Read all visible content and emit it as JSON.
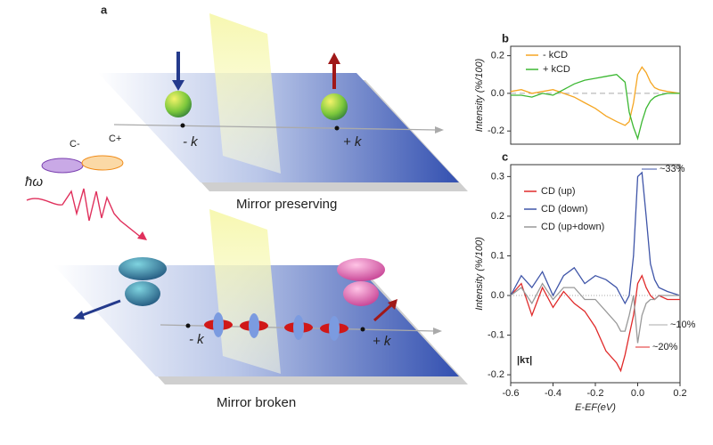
{
  "diagram": {
    "panel_label": "a",
    "top": {
      "minus_k": "- k",
      "plus_k": "+ k",
      "caption": "Mirror preserving"
    },
    "light": {
      "c_minus": "C-",
      "c_plus": "C+",
      "photon": "ħω"
    },
    "bottom": {
      "minus_k": "- k",
      "plus_k": "+ k",
      "caption": "Mirror broken"
    }
  },
  "chart_data": [
    {
      "type": "line",
      "panel_label": "b",
      "ylabel": "Intensity (%/100)",
      "x": [
        -0.6,
        -0.55,
        -0.5,
        -0.45,
        -0.4,
        -0.35,
        -0.3,
        -0.25,
        -0.2,
        -0.15,
        -0.1,
        -0.08,
        -0.06,
        -0.04,
        -0.02,
        0,
        0.02,
        0.04,
        0.06,
        0.08,
        0.1,
        0.14,
        0.2
      ],
      "xlim": [
        -0.6,
        0.2
      ],
      "ylim": [
        -0.27,
        0.25
      ],
      "yticks": [
        -0.2,
        {
          "value": 0,
          "label": "0.0"
        },
        0.2
      ],
      "zero_line": "dashed",
      "series": [
        {
          "name": "- kCD",
          "color": "#f5a623",
          "values": [
            0.01,
            0.02,
            0.0,
            0.01,
            0.02,
            0.0,
            -0.02,
            -0.05,
            -0.08,
            -0.12,
            -0.15,
            -0.16,
            -0.17,
            -0.15,
            -0.05,
            0.1,
            0.14,
            0.11,
            0.06,
            0.03,
            0.02,
            0.01,
            0.0
          ]
        },
        {
          "name": "+ kCD",
          "color": "#3cb832",
          "values": [
            -0.01,
            -0.01,
            -0.02,
            0.0,
            -0.01,
            0.02,
            0.05,
            0.07,
            0.08,
            0.09,
            0.1,
            0.08,
            0.06,
            -0.1,
            -0.18,
            -0.24,
            -0.15,
            -0.08,
            -0.04,
            -0.02,
            -0.01,
            0.0,
            0.0
          ]
        }
      ]
    },
    {
      "type": "line",
      "panel_label": "c",
      "ylabel": "Intensity (%/100)",
      "xlabel": "E-EF(eV)",
      "x": [
        -0.6,
        -0.55,
        -0.5,
        -0.45,
        -0.4,
        -0.35,
        -0.3,
        -0.25,
        -0.2,
        -0.15,
        -0.1,
        -0.08,
        -0.06,
        -0.04,
        -0.02,
        0,
        0.02,
        0.04,
        0.06,
        0.08,
        0.1,
        0.14,
        0.2
      ],
      "xlim": [
        -0.6,
        0.2
      ],
      "xticks": [
        -0.6,
        -0.4,
        -0.2,
        {
          "value": 0,
          "label": "0.0"
        },
        0.2
      ],
      "ylim": [
        -0.22,
        0.33
      ],
      "yticks": [
        -0.2,
        -0.1,
        {
          "value": 0,
          "label": "0.0"
        },
        0.1,
        0.2,
        0.3
      ],
      "zero_line": "dotted",
      "series": [
        {
          "name": "CD (up)",
          "color": "#e02a2a",
          "values": [
            0.0,
            0.03,
            -0.05,
            0.02,
            -0.03,
            0.01,
            -0.02,
            -0.04,
            -0.08,
            -0.14,
            -0.17,
            -0.19,
            -0.15,
            -0.1,
            -0.05,
            0.03,
            0.05,
            0.02,
            0.0,
            -0.01,
            0.0,
            -0.01,
            -0.01
          ]
        },
        {
          "name": "CD (down)",
          "color": "#3f55a8",
          "values": [
            0.0,
            0.05,
            0.02,
            0.06,
            0.0,
            0.05,
            0.07,
            0.03,
            0.05,
            0.04,
            0.02,
            0.0,
            -0.02,
            0.0,
            0.1,
            0.3,
            0.31,
            0.2,
            0.08,
            0.04,
            0.02,
            0.01,
            0.0
          ]
        },
        {
          "name": "CD (up+down)",
          "color": "#999999",
          "values": [
            0.0,
            0.02,
            -0.02,
            0.03,
            -0.01,
            0.02,
            0.02,
            -0.01,
            -0.01,
            -0.04,
            -0.07,
            -0.09,
            -0.09,
            -0.05,
            0.0,
            -0.12,
            -0.05,
            -0.02,
            -0.01,
            -0.01,
            0.0,
            0.0,
            0.0
          ]
        }
      ],
      "annotations": [
        {
          "text": "~33%",
          "color": "#3f55a8"
        },
        {
          "text": "~10%",
          "color": "#aaaaaa"
        },
        {
          "text": "~20%",
          "color": "#e02a2a"
        },
        {
          "text": "|kτ|",
          "color": "#222222"
        }
      ]
    }
  ]
}
